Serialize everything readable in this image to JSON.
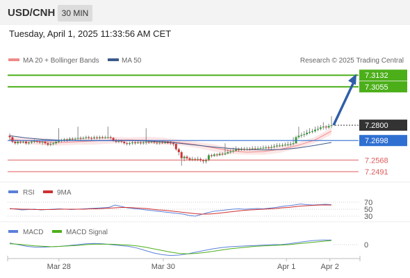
{
  "header": {
    "symbol": "USD/CNH",
    "timeframe": "30 MIN",
    "datetime": "Tuesday, April 1, 2025 11:33:56 AM CET"
  },
  "legend": {
    "ma20": "MA 20 + Bollinger Bands",
    "ma50": "MA 50",
    "credit": "Research © 2025 Trading Central",
    "rsi": "RSI",
    "rsi_ma": "9MA",
    "macd": "MACD",
    "macd_signal": "MACD Signal"
  },
  "colors": {
    "resistance": "#4caf1a",
    "current": "#333333",
    "pivot": "#2f6fd1",
    "support": "#e05a5a",
    "bull": "#3c9a3c",
    "bear": "#d03030",
    "ma20": "#f08a8a",
    "ma50": "#3a5a8c",
    "arrow": "#2f5fa8"
  },
  "chart_data": [
    {
      "type": "candlestick",
      "x_ticks": [
        "Mar 28",
        "Mar 30",
        "Apr 1",
        "Apr 2"
      ],
      "ylim": [
        7.244,
        7.317
      ],
      "series": [
        {
          "name": "MA 20 + Bollinger Bands",
          "values": [
            7.2705,
            7.2695,
            7.269,
            7.2685,
            7.269,
            7.2695,
            7.27,
            7.2702,
            7.27,
            7.2695,
            7.2685,
            7.267,
            7.265,
            7.263,
            7.262,
            7.2625,
            7.264,
            7.2665,
            7.27,
            7.276
          ]
        },
        {
          "name": "MA 50",
          "values": [
            7.273,
            7.2715,
            7.2705,
            7.27,
            7.2698,
            7.2697,
            7.2697,
            7.2697,
            7.2695,
            7.269,
            7.268,
            7.2668,
            7.2655,
            7.2645,
            7.2638,
            7.2635,
            7.2638,
            7.2648,
            7.2665,
            7.2685
          ]
        }
      ],
      "levels": [
        {
          "label": "7.3132",
          "value": 7.3132,
          "kind": "resistance"
        },
        {
          "label": "7.3055",
          "value": 7.3055,
          "kind": "resistance"
        },
        {
          "label": "7.2800",
          "value": 7.28,
          "kind": "current"
        },
        {
          "label": "7.2698",
          "value": 7.2698,
          "kind": "pivot"
        },
        {
          "label": "7.2568",
          "value": 7.2568,
          "kind": "support"
        },
        {
          "label": "7.2491",
          "value": 7.2491,
          "kind": "support"
        }
      ],
      "candles": [
        [
          7.273,
          7.272,
          7.2745,
          7.27
        ],
        [
          7.272,
          7.269,
          7.273,
          7.268
        ],
        [
          7.269,
          7.268,
          7.27,
          7.267
        ],
        [
          7.268,
          7.269,
          7.27,
          7.267
        ],
        [
          7.269,
          7.2685,
          7.27,
          7.2675
        ],
        [
          7.2685,
          7.269,
          7.27,
          7.268
        ],
        [
          7.269,
          7.268,
          7.27,
          7.267
        ],
        [
          7.268,
          7.2685,
          7.269,
          7.267
        ],
        [
          7.2685,
          7.269,
          7.27,
          7.2675
        ],
        [
          7.269,
          7.2695,
          7.2705,
          7.268
        ],
        [
          7.2695,
          7.269,
          7.27,
          7.268
        ],
        [
          7.269,
          7.2685,
          7.27,
          7.2675
        ],
        [
          7.2685,
          7.269,
          7.27,
          7.267
        ],
        [
          7.269,
          7.268,
          7.27,
          7.267
        ],
        [
          7.268,
          7.267,
          7.269,
          7.266
        ],
        [
          7.267,
          7.2675,
          7.269,
          7.266
        ],
        [
          7.2675,
          7.268,
          7.269,
          7.2665
        ],
        [
          7.268,
          7.269,
          7.27,
          7.267
        ],
        [
          7.269,
          7.2695,
          7.278,
          7.268
        ],
        [
          7.2695,
          7.27,
          7.271,
          7.2685
        ],
        [
          7.27,
          7.2705,
          7.2715,
          7.269
        ],
        [
          7.2705,
          7.27,
          7.2715,
          7.269
        ],
        [
          7.27,
          7.271,
          7.272,
          7.2695
        ],
        [
          7.271,
          7.2705,
          7.272,
          7.2695
        ],
        [
          7.2705,
          7.271,
          7.272,
          7.27
        ],
        [
          7.271,
          7.2715,
          7.279,
          7.27
        ],
        [
          7.2715,
          7.271,
          7.2725,
          7.27
        ],
        [
          7.271,
          7.2715,
          7.2725,
          7.2705
        ],
        [
          7.2715,
          7.272,
          7.273,
          7.2705
        ],
        [
          7.272,
          7.2715,
          7.273,
          7.2705
        ],
        [
          7.2715,
          7.2712,
          7.2725,
          7.27
        ],
        [
          7.2712,
          7.2718,
          7.273,
          7.2705
        ],
        [
          7.2718,
          7.2714,
          7.273,
          7.2705
        ],
        [
          7.2714,
          7.272,
          7.273,
          7.2705
        ],
        [
          7.272,
          7.2715,
          7.273,
          7.271
        ],
        [
          7.2715,
          7.2718,
          7.273,
          7.271
        ],
        [
          7.2718,
          7.272,
          7.279,
          7.271
        ],
        [
          7.272,
          7.2715,
          7.273,
          7.2705
        ],
        [
          7.2715,
          7.27,
          7.272,
          7.269
        ],
        [
          7.27,
          7.269,
          7.271,
          7.268
        ],
        [
          7.269,
          7.2695,
          7.2705,
          7.268
        ],
        [
          7.2695,
          7.269,
          7.2705,
          7.268
        ],
        [
          7.269,
          7.268,
          7.27,
          7.267
        ],
        [
          7.268,
          7.2675,
          7.269,
          7.2665
        ],
        [
          7.2675,
          7.268,
          7.269,
          7.2665
        ],
        [
          7.268,
          7.2685,
          7.2695,
          7.267
        ],
        [
          7.2685,
          7.268,
          7.2695,
          7.267
        ],
        [
          7.268,
          7.2685,
          7.27,
          7.2675
        ],
        [
          7.2685,
          7.268,
          7.2695,
          7.267
        ],
        [
          7.268,
          7.2685,
          7.27,
          7.267
        ],
        [
          7.2685,
          7.269,
          7.278,
          7.267
        ],
        [
          7.269,
          7.2685,
          7.27,
          7.2675
        ],
        [
          7.2685,
          7.269,
          7.27,
          7.268
        ],
        [
          7.269,
          7.2685,
          7.27,
          7.2675
        ],
        [
          7.2685,
          7.2682,
          7.2695,
          7.267
        ],
        [
          7.2682,
          7.2686,
          7.2695,
          7.267
        ],
        [
          7.2686,
          7.2684,
          7.2695,
          7.2675
        ],
        [
          7.2684,
          7.2685,
          7.2695,
          7.2675
        ],
        [
          7.2685,
          7.2684,
          7.2695,
          7.2675
        ],
        [
          7.2684,
          7.268,
          7.2695,
          7.267
        ],
        [
          7.268,
          7.2675,
          7.269,
          7.266
        ],
        [
          7.2675,
          7.264,
          7.268,
          7.263
        ],
        [
          7.264,
          7.262,
          7.265,
          7.26
        ],
        [
          7.262,
          7.258,
          7.263,
          7.253
        ],
        [
          7.258,
          7.259,
          7.26,
          7.256
        ],
        [
          7.259,
          7.258,
          7.26,
          7.257
        ],
        [
          7.258,
          7.257,
          7.259,
          7.256
        ],
        [
          7.257,
          7.2575,
          7.259,
          7.256
        ],
        [
          7.2575,
          7.257,
          7.2585,
          7.256
        ],
        [
          7.257,
          7.2575,
          7.259,
          7.256
        ],
        [
          7.2575,
          7.2565,
          7.2585,
          7.2555
        ],
        [
          7.2565,
          7.256,
          7.2575,
          7.2545
        ],
        [
          7.256,
          7.257,
          7.258,
          7.2545
        ],
        [
          7.257,
          7.26,
          7.261,
          7.256
        ],
        [
          7.26,
          7.2595,
          7.261,
          7.2585
        ],
        [
          7.2595,
          7.2605,
          7.2615,
          7.259
        ],
        [
          7.2605,
          7.26,
          7.2615,
          7.259
        ],
        [
          7.26,
          7.261,
          7.262,
          7.2595
        ],
        [
          7.261,
          7.2605,
          7.262,
          7.2595
        ],
        [
          7.2605,
          7.2612,
          7.268,
          7.26
        ],
        [
          7.2612,
          7.262,
          7.264,
          7.2605
        ],
        [
          7.262,
          7.2625,
          7.264,
          7.261
        ],
        [
          7.2625,
          7.263,
          7.265,
          7.2615
        ],
        [
          7.263,
          7.264,
          7.266,
          7.2625
        ],
        [
          7.264,
          7.2635,
          7.265,
          7.2625
        ],
        [
          7.2635,
          7.264,
          7.2655,
          7.263
        ],
        [
          7.264,
          7.2638,
          7.2655,
          7.263
        ],
        [
          7.2638,
          7.2642,
          7.2655,
          7.263
        ],
        [
          7.2642,
          7.264,
          7.2655,
          7.263
        ],
        [
          7.264,
          7.2645,
          7.266,
          7.2635
        ],
        [
          7.2645,
          7.2642,
          7.266,
          7.2635
        ],
        [
          7.2642,
          7.2646,
          7.266,
          7.2635
        ],
        [
          7.2646,
          7.2648,
          7.266,
          7.264
        ],
        [
          7.2648,
          7.265,
          7.2665,
          7.264
        ],
        [
          7.265,
          7.2652,
          7.2665,
          7.264
        ],
        [
          7.2652,
          7.265,
          7.2665,
          7.264
        ],
        [
          7.265,
          7.2655,
          7.267,
          7.264
        ],
        [
          7.2655,
          7.266,
          7.2675,
          7.2645
        ],
        [
          7.266,
          7.2665,
          7.268,
          7.265
        ],
        [
          7.2665,
          7.2665,
          7.268,
          7.2655
        ],
        [
          7.2665,
          7.2668,
          7.268,
          7.2655
        ],
        [
          7.2668,
          7.267,
          7.2685,
          7.266
        ],
        [
          7.267,
          7.2672,
          7.269,
          7.266
        ],
        [
          7.2672,
          7.2675,
          7.269,
          7.266
        ],
        [
          7.2675,
          7.268,
          7.272,
          7.2665
        ],
        [
          7.268,
          7.272,
          7.273,
          7.2675
        ],
        [
          7.272,
          7.273,
          7.279,
          7.271
        ],
        [
          7.273,
          7.2735,
          7.275,
          7.2715
        ],
        [
          7.2735,
          7.274,
          7.276,
          7.272
        ],
        [
          7.274,
          7.275,
          7.277,
          7.273
        ],
        [
          7.275,
          7.2755,
          7.278,
          7.274
        ],
        [
          7.2755,
          7.276,
          7.2775,
          7.2745
        ],
        [
          7.276,
          7.277,
          7.279,
          7.275
        ],
        [
          7.277,
          7.2775,
          7.2795,
          7.276
        ],
        [
          7.2775,
          7.2785,
          7.28,
          7.2765
        ],
        [
          7.2785,
          7.279,
          7.282,
          7.277
        ],
        [
          7.279,
          7.2785,
          7.28,
          7.277
        ],
        [
          7.2785,
          7.2795,
          7.281,
          7.2775
        ],
        [
          7.2795,
          7.28,
          7.286,
          7.278
        ]
      ]
    },
    {
      "type": "line",
      "name": "RSI",
      "y_ticks": [
        "70",
        "50",
        "30"
      ],
      "ylim": [
        20,
        80
      ],
      "series": [
        {
          "name": "RSI",
          "values": [
            52,
            50,
            48,
            49,
            50,
            48,
            49,
            50,
            51,
            50,
            49,
            50,
            51,
            52,
            53,
            54,
            55,
            62,
            58,
            54,
            52,
            50,
            48,
            46,
            44,
            42,
            40,
            38,
            36,
            32,
            30,
            35,
            40,
            44,
            46,
            48,
            50,
            51,
            50,
            51,
            52,
            51,
            53,
            55,
            58,
            60,
            62,
            65,
            63,
            62,
            63,
            64,
            63
          ]
        },
        {
          "name": "9MA",
          "values": [
            51,
            51,
            50,
            50,
            49,
            49,
            49,
            49,
            50,
            50,
            50,
            50,
            50,
            51,
            51,
            52,
            53,
            54,
            55,
            55,
            54,
            53,
            52,
            50,
            48,
            47,
            45,
            43,
            41,
            39,
            37,
            36,
            36,
            37,
            39,
            41,
            43,
            45,
            47,
            48,
            49,
            50,
            51,
            52,
            54,
            55,
            57,
            59,
            60,
            61,
            62,
            62,
            62
          ]
        }
      ]
    },
    {
      "type": "line",
      "name": "MACD",
      "y_ticks": [
        "0"
      ],
      "ylim": [
        -0.003,
        0.0015
      ],
      "series": [
        {
          "name": "MACD",
          "values": [
            0.0004,
            0.0,
            -0.0004,
            -0.0006,
            -0.0006,
            -0.0005,
            -0.0004,
            -0.0002,
            0.0,
            0.0002,
            0.0003,
            0.0002,
            0.0,
            -0.0002,
            -0.0004,
            -0.0008,
            -0.0014,
            -0.002,
            -0.0024,
            -0.0026,
            -0.0025,
            -0.0022,
            -0.0018,
            -0.0014,
            -0.001,
            -0.0007,
            -0.0005,
            -0.0004,
            -0.0003,
            -0.0002,
            -0.0001,
            0.0,
            0.0,
            0.0002,
            0.0005,
            0.0008,
            0.001,
            0.0011,
            0.0011
          ]
        },
        {
          "name": "MACD Signal",
          "values": [
            0.0002,
            0.0001,
            -0.0001,
            -0.0003,
            -0.0004,
            -0.0005,
            -0.0004,
            -0.0003,
            -0.0002,
            0.0,
            0.0001,
            0.0001,
            0.0001,
            0.0,
            -0.0001,
            -0.0003,
            -0.0006,
            -0.001,
            -0.0014,
            -0.0018,
            -0.0021,
            -0.0022,
            -0.0021,
            -0.0019,
            -0.0016,
            -0.0013,
            -0.001,
            -0.0008,
            -0.0006,
            -0.0004,
            -0.0003,
            -0.0002,
            -0.0001,
            0.0,
            0.0002,
            0.0004,
            0.0006,
            0.0008,
            0.001
          ]
        }
      ]
    }
  ]
}
